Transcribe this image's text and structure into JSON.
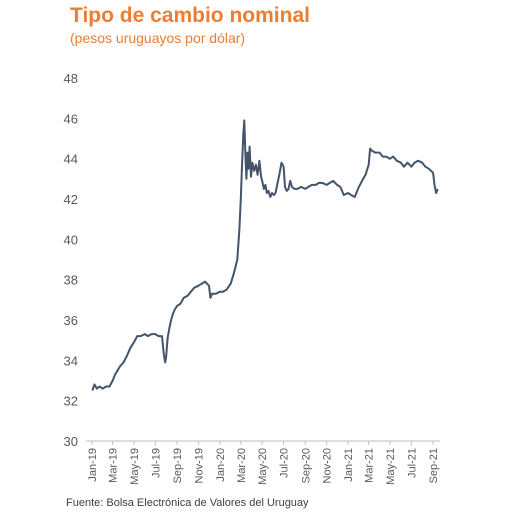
{
  "header": {
    "title": "Tipo de cambio nominal",
    "subtitle": "(pesos uruguayos por dólar)"
  },
  "footer": {
    "source": "Fuente: Bolsa Electrónica de Valores del Uruguay"
  },
  "colors": {
    "accent": "#ED7D31",
    "line": "#44546A",
    "axis": "#595959"
  },
  "chart_data": {
    "type": "line",
    "title": "Tipo de cambio nominal",
    "subtitle": "(pesos uruguayos por dólar)",
    "xlabel": "",
    "ylabel": "",
    "ylim": [
      30,
      48
    ],
    "y_ticks": [
      30,
      32,
      34,
      36,
      38,
      40,
      42,
      44,
      46,
      48
    ],
    "x_ticks": [
      "Jan-19",
      "Mar-19",
      "May-19",
      "Jul-19",
      "Sep-19",
      "Nov-19",
      "Jan-20",
      "Mar-20",
      "May-20",
      "Jul-20",
      "Sep-20",
      "Nov-20",
      "Jan-21",
      "Mar-21",
      "May-21",
      "Jul-21",
      "Sep-21"
    ],
    "grid": false,
    "legend": "none",
    "series": [
      {
        "x": [
          "2019-01-02",
          "2019-01-08",
          "2019-01-15",
          "2019-01-22",
          "2019-02-01",
          "2019-02-10",
          "2019-02-20",
          "2019-03-01",
          "2019-03-08",
          "2019-03-15",
          "2019-03-22",
          "2019-04-01",
          "2019-04-10",
          "2019-04-20",
          "2019-05-01",
          "2019-05-10",
          "2019-05-20",
          "2019-06-01",
          "2019-06-10",
          "2019-06-20",
          "2019-07-01",
          "2019-07-10",
          "2019-07-20",
          "2019-07-25",
          "2019-07-29",
          "2019-08-01",
          "2019-08-05",
          "2019-08-10",
          "2019-08-15",
          "2019-08-20",
          "2019-08-25",
          "2019-09-01",
          "2019-09-10",
          "2019-09-20",
          "2019-10-01",
          "2019-10-10",
          "2019-10-20",
          "2019-11-01",
          "2019-11-10",
          "2019-11-20",
          "2019-12-01",
          "2019-12-05",
          "2019-12-10",
          "2019-12-20",
          "2020-01-01",
          "2020-01-10",
          "2020-01-20",
          "2020-02-01",
          "2020-02-10",
          "2020-02-20",
          "2020-02-26",
          "2020-03-01",
          "2020-03-04",
          "2020-03-08",
          "2020-03-11",
          "2020-03-14",
          "2020-03-17",
          "2020-03-20",
          "2020-03-23",
          "2020-03-26",
          "2020-03-30",
          "2020-04-03",
          "2020-04-08",
          "2020-04-13",
          "2020-04-18",
          "2020-04-23",
          "2020-04-28",
          "2020-05-01",
          "2020-05-06",
          "2020-05-10",
          "2020-05-14",
          "2020-05-19",
          "2020-05-24",
          "2020-05-29",
          "2020-06-03",
          "2020-06-08",
          "2020-06-15",
          "2020-06-20",
          "2020-06-25",
          "2020-07-01",
          "2020-07-05",
          "2020-07-10",
          "2020-07-15",
          "2020-07-20",
          "2020-07-25",
          "2020-08-01",
          "2020-08-10",
          "2020-08-20",
          "2020-09-01",
          "2020-09-10",
          "2020-09-20",
          "2020-10-01",
          "2020-10-10",
          "2020-10-20",
          "2020-11-01",
          "2020-11-10",
          "2020-11-20",
          "2020-12-01",
          "2020-12-10",
          "2020-12-20",
          "2021-01-01",
          "2021-01-10",
          "2021-01-20",
          "2021-02-01",
          "2021-02-10",
          "2021-02-20",
          "2021-03-01",
          "2021-03-05",
          "2021-03-10",
          "2021-03-20",
          "2021-04-01",
          "2021-04-10",
          "2021-04-20",
          "2021-05-01",
          "2021-05-10",
          "2021-05-20",
          "2021-06-01",
          "2021-06-10",
          "2021-06-20",
          "2021-07-01",
          "2021-07-10",
          "2021-07-20",
          "2021-08-01",
          "2021-08-10",
          "2021-08-20",
          "2021-09-01",
          "2021-09-05",
          "2021-09-10",
          "2021-09-14"
        ],
        "values": [
          32.5,
          32.8,
          32.6,
          32.7,
          32.6,
          32.7,
          32.7,
          33.0,
          33.3,
          33.5,
          33.7,
          33.9,
          34.2,
          34.6,
          34.9,
          35.2,
          35.2,
          35.3,
          35.2,
          35.3,
          35.3,
          35.2,
          35.2,
          34.3,
          33.9,
          34.2,
          35.1,
          35.6,
          36.0,
          36.3,
          36.5,
          36.7,
          36.8,
          37.1,
          37.2,
          37.4,
          37.6,
          37.7,
          37.8,
          37.9,
          37.7,
          37.1,
          37.3,
          37.3,
          37.4,
          37.4,
          37.5,
          37.8,
          38.3,
          39.0,
          40.5,
          42.0,
          43.5,
          45.2,
          45.9,
          44.2,
          43.0,
          44.3,
          43.5,
          44.6,
          43.1,
          43.8,
          43.4,
          43.7,
          43.2,
          43.9,
          43.1,
          42.9,
          42.5,
          42.7,
          42.3,
          42.4,
          42.1,
          42.3,
          42.2,
          42.3,
          42.9,
          43.3,
          43.8,
          43.6,
          42.6,
          42.4,
          42.5,
          42.9,
          42.6,
          42.5,
          42.5,
          42.6,
          42.5,
          42.6,
          42.7,
          42.7,
          42.8,
          42.8,
          42.7,
          42.8,
          42.9,
          42.7,
          42.6,
          42.2,
          42.3,
          42.2,
          42.1,
          42.6,
          42.9,
          43.2,
          43.7,
          44.5,
          44.4,
          44.3,
          44.3,
          44.1,
          44.1,
          44.0,
          44.1,
          43.9,
          43.8,
          43.6,
          43.8,
          43.6,
          43.8,
          43.9,
          43.8,
          43.6,
          43.5,
          43.3,
          42.7,
          42.3,
          42.5
        ]
      }
    ]
  }
}
